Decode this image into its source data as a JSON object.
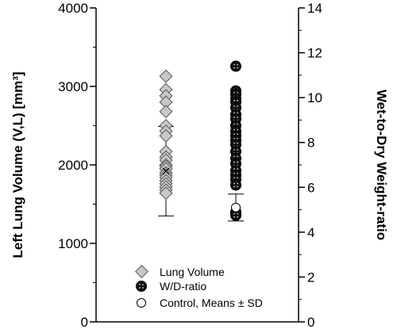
{
  "chart_data": {
    "type": "scatter",
    "title": "",
    "y_left": {
      "label": "Left Lung Volume (V,L) [mm³]",
      "range": [
        0,
        4000
      ],
      "ticks": [
        "0",
        "1000",
        "2000",
        "3000",
        "4000"
      ]
    },
    "y_right": {
      "label": "Wet-to-Dry Weight-ratio",
      "range": [
        0,
        14
      ],
      "ticks": [
        "0",
        "2",
        "4",
        "6",
        "8",
        "10",
        "12",
        "14"
      ]
    },
    "grid": false,
    "legend": {
      "placement": "bottom-center",
      "items": [
        {
          "label": "Lung Volume",
          "marker": "diamond",
          "color": "#c8c8c8"
        },
        {
          "label": "W/D-ratio",
          "marker": "dotted-circle",
          "color": "#111111"
        },
        {
          "label": "Control, Means ± SD",
          "marker": "open-circle",
          "color": "#ffffff"
        }
      ]
    },
    "series": [
      {
        "name": "Lung Volume",
        "axis": "left",
        "marker": "diamond",
        "values": [
          3130,
          2960,
          2880,
          2800,
          2680,
          2500,
          2430,
          2370,
          2170,
          2100,
          2060,
          2000,
          1980,
          1950,
          1900,
          1870,
          1840,
          1800,
          1760,
          1720,
          1680,
          1640
        ]
      },
      {
        "name": "W/D-ratio",
        "axis": "right",
        "marker": "dotted-circle",
        "values": [
          11.4,
          10.3,
          10.15,
          9.95,
          9.8,
          9.55,
          9.25,
          9.05,
          8.75,
          8.5,
          8.3,
          8.1,
          7.9,
          7.6,
          7.3,
          7.05,
          6.75,
          6.55,
          6.35,
          6.1,
          4.9,
          4.85,
          4.75
        ]
      }
    ],
    "controls": [
      {
        "series": "Lung Volume",
        "axis": "left",
        "mean": 1920,
        "sd": 570,
        "marker": "x"
      },
      {
        "series": "W/D-ratio",
        "axis": "right",
        "mean": 5.1,
        "sd": 0.6,
        "marker": "open-circle"
      }
    ]
  }
}
